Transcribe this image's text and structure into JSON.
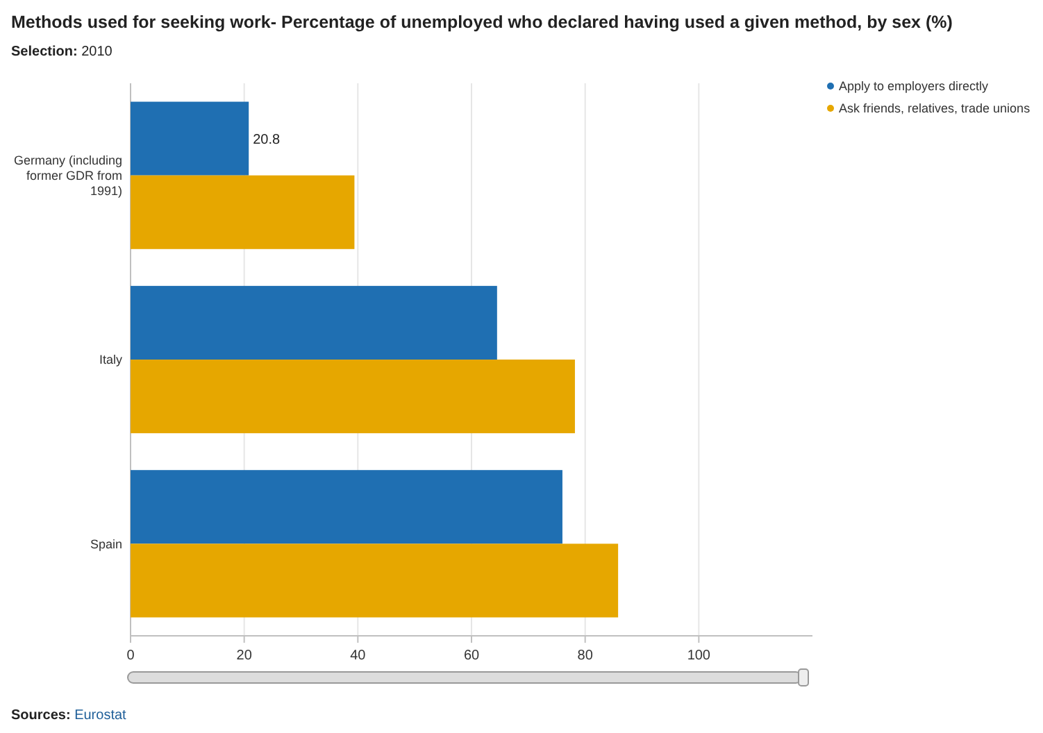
{
  "chart_data": {
    "type": "bar",
    "orientation": "horizontal",
    "title": "Methods used for seeking work- Percentage of unemployed who declared having used a given method, by sex (%)",
    "subtitle": "Selection: 2010",
    "categories": [
      "Germany (including former GDR from 1991)",
      "Italy",
      "Spain"
    ],
    "series": [
      {
        "name": "Apply to employers directly",
        "color": "#1f6fb2",
        "values": [
          20.8,
          64.5,
          76
        ],
        "value_labels": [
          "20.8",
          null,
          null
        ]
      },
      {
        "name": "Ask friends, relatives, trade unions",
        "color": "#e6a700",
        "values": [
          39.4,
          78.2,
          85.8
        ]
      }
    ],
    "xlim": [
      0,
      120
    ],
    "xticks": [
      0,
      20,
      40,
      60,
      80,
      100
    ],
    "grid": "x",
    "legend": "top right",
    "annotations": [
      "Sources: Eurostat"
    ]
  }
}
